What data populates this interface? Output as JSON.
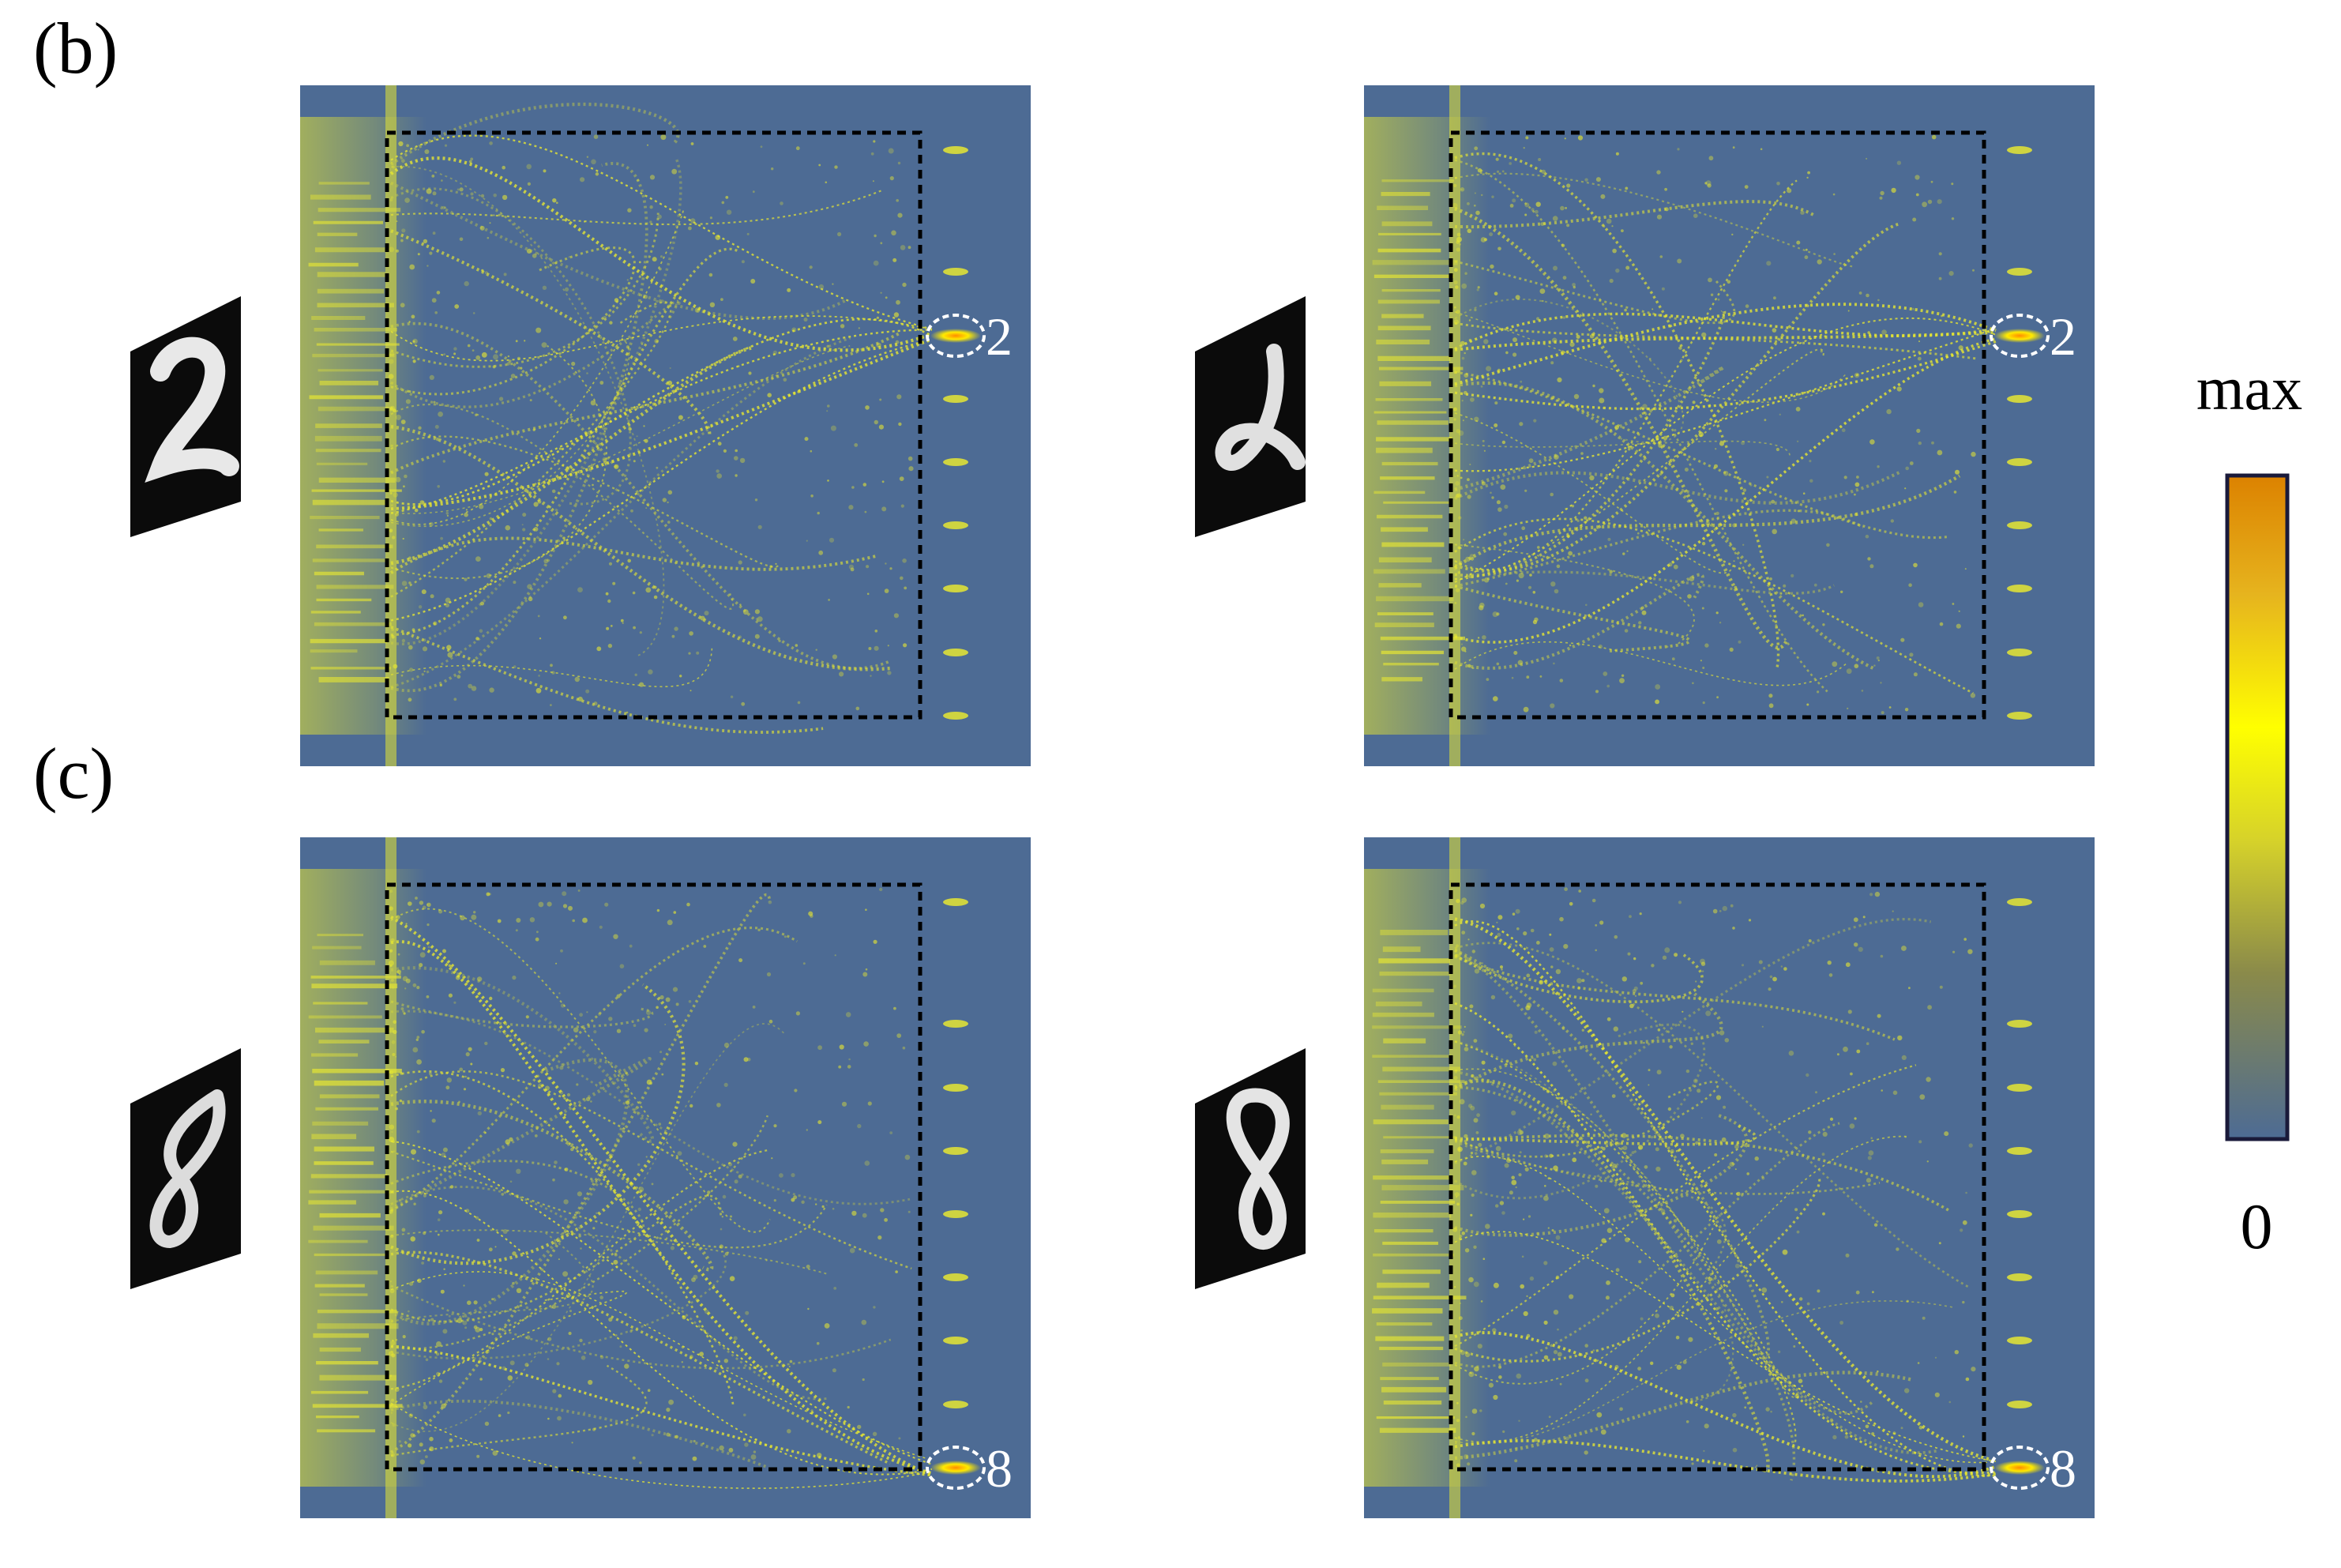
{
  "figure": {
    "panel_b_label": "(b)",
    "panel_c_label": "(c)",
    "colorbar": {
      "max_label": "max",
      "min_label": "0",
      "colors": [
        "#4d6b94",
        "#8a8a4a",
        "#d6d22a",
        "#ffff00",
        "#e6b41e",
        "#dc8200"
      ]
    },
    "panels": [
      {
        "name": "b-left",
        "digit": "2",
        "detector_index": 2
      },
      {
        "name": "b-right",
        "digit": "2",
        "detector_index": 2
      },
      {
        "name": "c-left",
        "digit": "8",
        "detector_index": 8
      },
      {
        "name": "c-right",
        "digit": "8",
        "detector_index": 8
      }
    ],
    "background_color": "#4d6b94",
    "wave_color": "#e6e632",
    "box_color": "#000000",
    "marker_color": "#ffffff"
  }
}
